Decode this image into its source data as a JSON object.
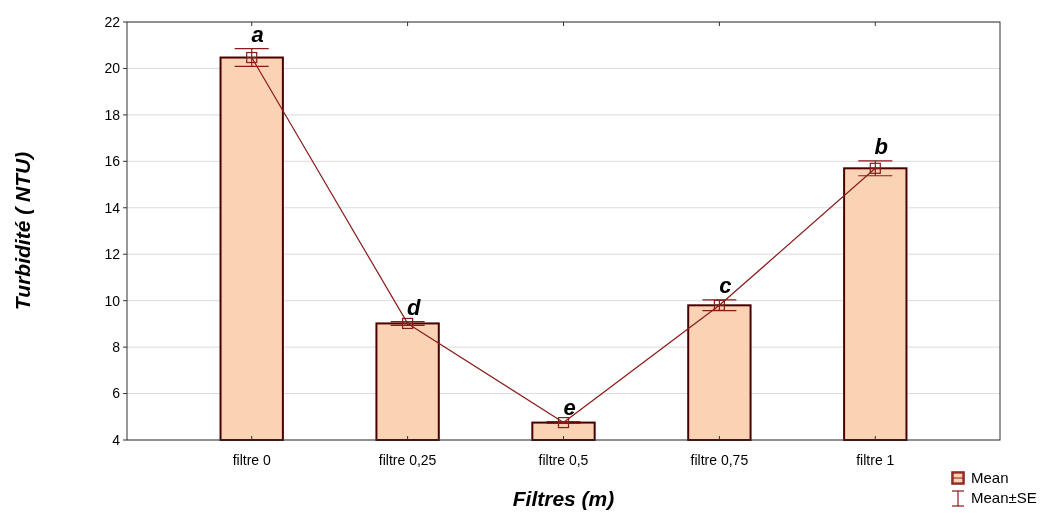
{
  "chart_data": {
    "type": "bar",
    "xlabel": "Filtres (m)",
    "ylabel": "Turbidité ( NTU)",
    "categories": [
      "filtre 0",
      "filtre 0,25",
      "filtre 0,5",
      "filtre 0,75",
      "filtre 1"
    ],
    "series": [
      {
        "color": "#f9d3b3",
        "values": [
          20.47,
          9.02,
          4.75,
          9.8,
          15.7
        ]
      },
      {
        "type": "line",
        "name": "Mean",
        "color": "#8b1a1a",
        "marker": "square",
        "values": [
          20.47,
          9.02,
          4.75,
          9.8,
          15.7
        ],
        "errors": [
          0.38,
          0.08,
          0.04,
          0.23,
          0.32
        ]
      }
    ],
    "ylim": [
      4,
      22
    ],
    "yticks": [
      4,
      6,
      8,
      10,
      12,
      14,
      16,
      18,
      20,
      22
    ],
    "grid": "y",
    "legend": "bottom right",
    "annotations": [
      "Mean±SE",
      {
        "text": "a",
        "x": "filtre 0",
        "y": 20.85
      },
      {
        "text": "d",
        "x": "filtre 0,25",
        "y": 9.1
      },
      {
        "text": "e",
        "x": "filtre 0,5",
        "y": 4.79
      },
      {
        "text": "c",
        "x": "filtre 0,75",
        "y": 10.03
      },
      {
        "text": "b",
        "x": "filtre 1",
        "y": 16.02
      }
    ]
  }
}
